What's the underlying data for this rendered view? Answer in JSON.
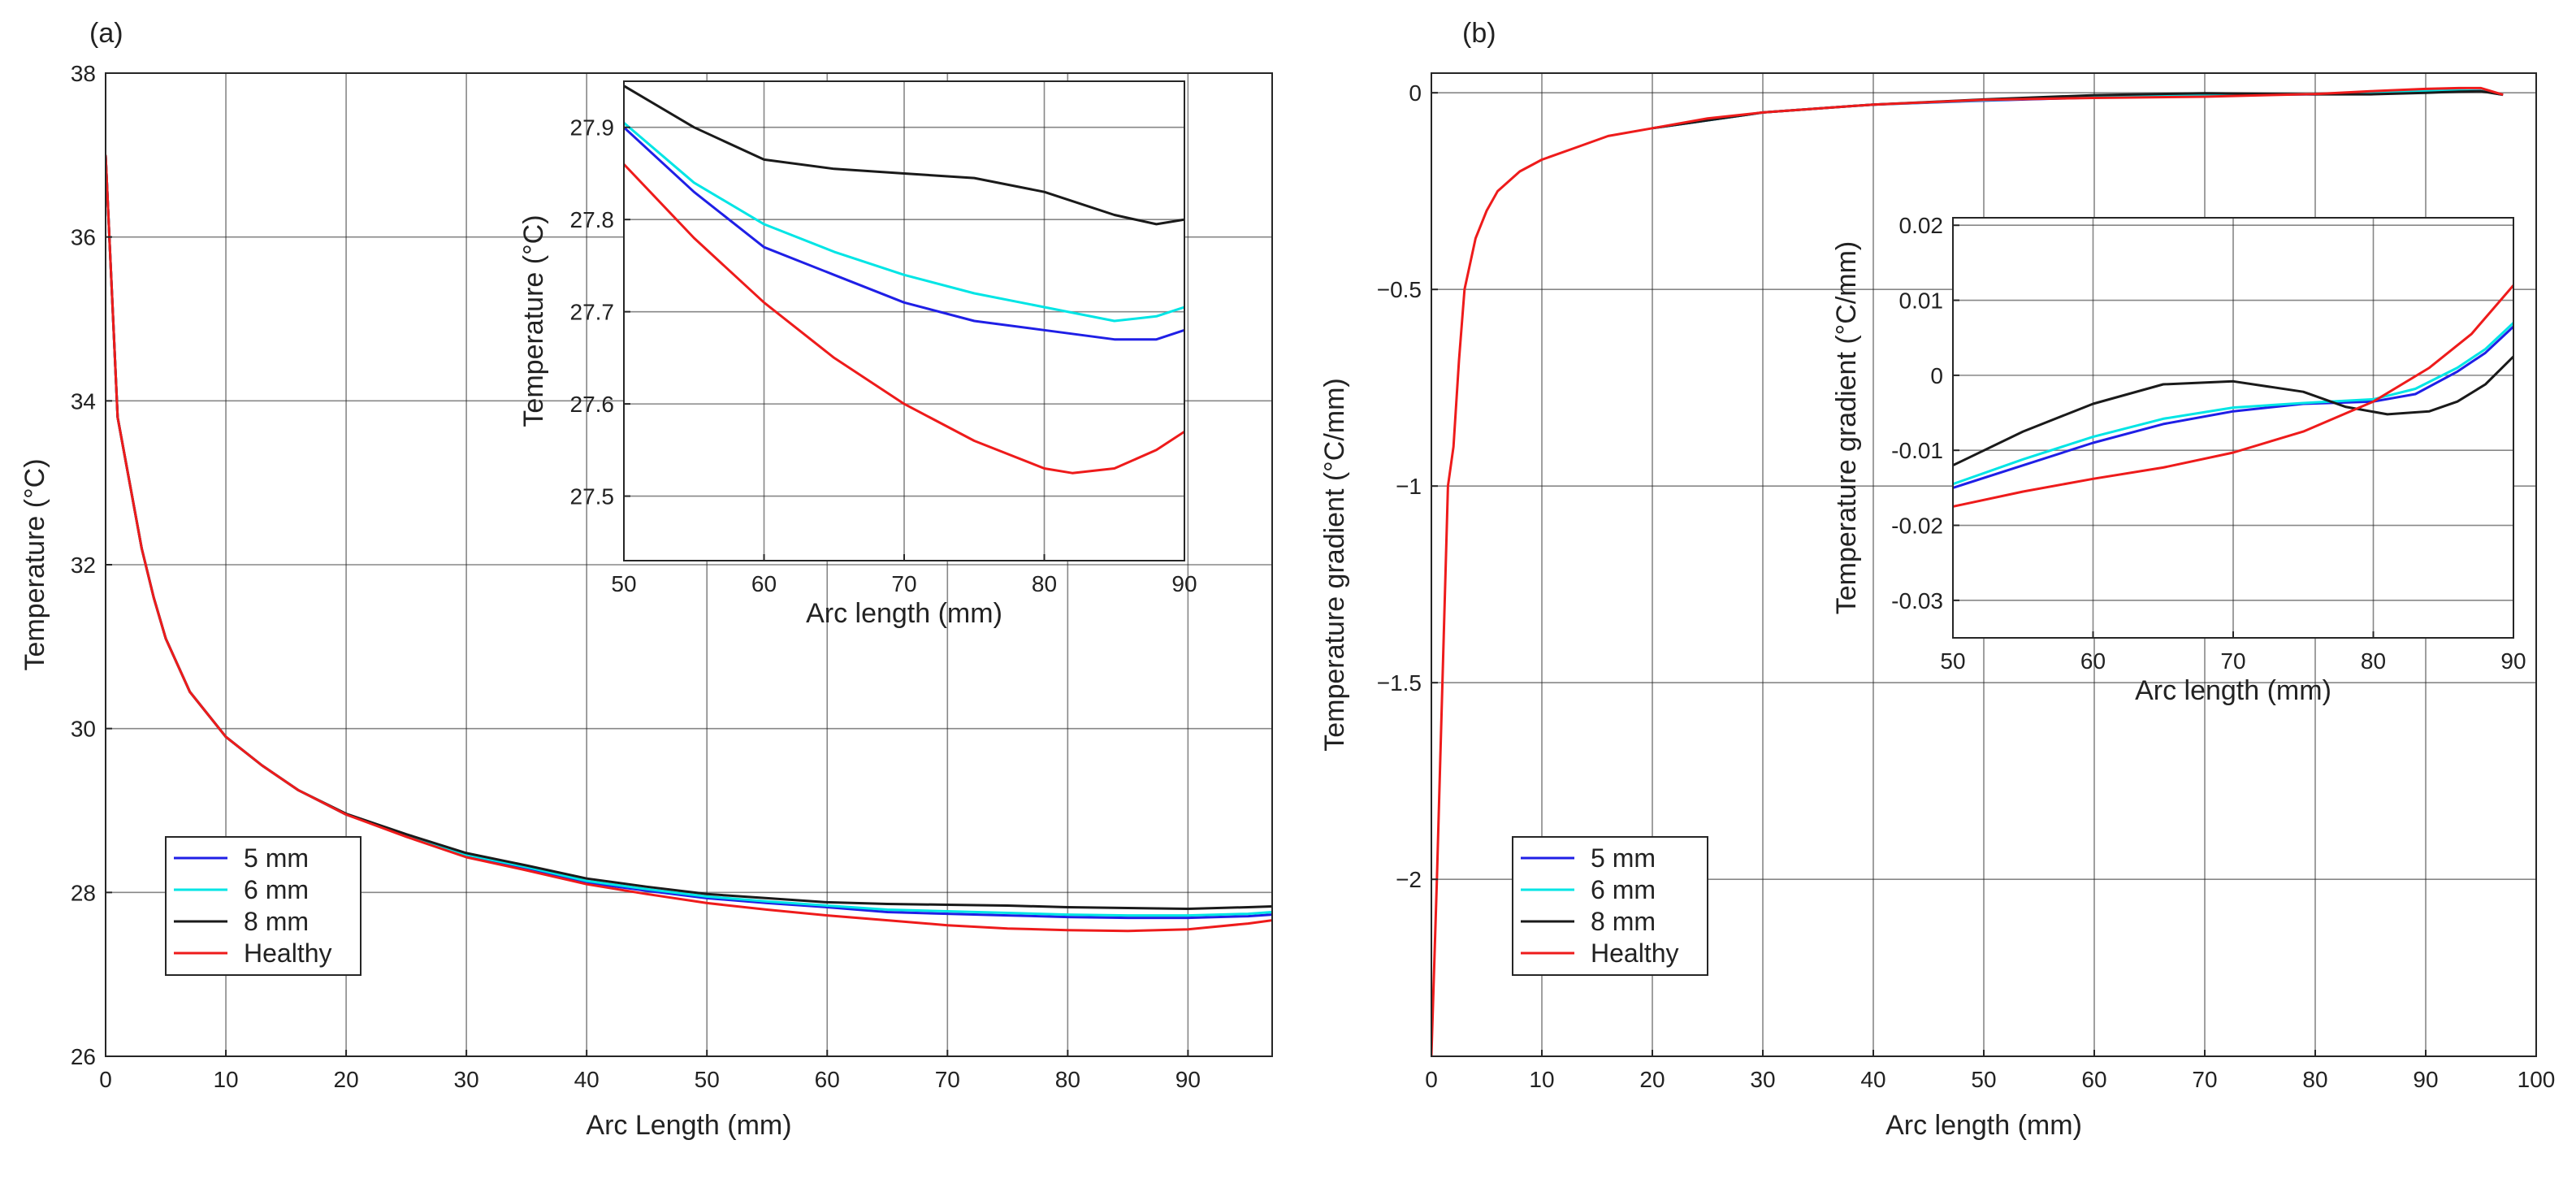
{
  "chart_data": [
    {
      "type": "line",
      "panel_label": "(a)",
      "xlabel": "Arc Length (mm)",
      "ylabel": "Temperature (°C)",
      "xlim": [
        0,
        97
      ],
      "ylim": [
        26,
        38
      ],
      "xticks": [
        0,
        10,
        20,
        30,
        40,
        50,
        60,
        70,
        80,
        90
      ],
      "yticks": [
        26,
        28,
        30,
        32,
        34,
        36,
        38
      ],
      "xtick_labels": [
        "0",
        "10",
        "20",
        "30",
        "40",
        "50",
        "60",
        "70",
        "80",
        "90"
      ],
      "ytick_labels": [
        "26",
        "28",
        "30",
        "32",
        "34",
        "36",
        "38"
      ],
      "grid": true,
      "legend_position": "bottom-left",
      "series": [
        {
          "name": "5 mm",
          "color": "#1f1fe6",
          "x": [
            0,
            1,
            2,
            3,
            4,
            5,
            7,
            10,
            13,
            16,
            20,
            25,
            30,
            35,
            40,
            45,
            50,
            55,
            60,
            65,
            70,
            75,
            80,
            85,
            90,
            95,
            97
          ],
          "y": [
            37,
            33.8,
            33.0,
            32.2,
            31.6,
            31.1,
            30.45,
            29.9,
            29.55,
            29.25,
            28.95,
            28.7,
            28.45,
            28.3,
            28.12,
            28.02,
            27.93,
            27.87,
            27.82,
            27.76,
            27.74,
            27.72,
            27.7,
            27.69,
            27.69,
            27.71,
            27.73
          ]
        },
        {
          "name": "6 mm",
          "color": "#00e5e5",
          "x": [
            0,
            1,
            2,
            3,
            4,
            5,
            7,
            10,
            13,
            16,
            20,
            25,
            30,
            35,
            40,
            45,
            50,
            55,
            60,
            65,
            70,
            75,
            80,
            85,
            90,
            95,
            97
          ],
          "y": [
            37,
            33.8,
            33.0,
            32.2,
            31.6,
            31.1,
            30.45,
            29.9,
            29.55,
            29.25,
            28.95,
            28.7,
            28.46,
            28.31,
            28.14,
            28.04,
            27.95,
            27.89,
            27.84,
            27.79,
            27.77,
            27.75,
            27.73,
            27.72,
            27.72,
            27.74,
            27.76
          ]
        },
        {
          "name": "8 mm",
          "color": "#1a1a1a",
          "x": [
            0,
            1,
            2,
            3,
            4,
            5,
            7,
            10,
            13,
            16,
            20,
            25,
            30,
            35,
            40,
            45,
            50,
            55,
            60,
            65,
            70,
            75,
            80,
            85,
            90,
            95,
            97
          ],
          "y": [
            37,
            33.8,
            33.0,
            32.2,
            31.6,
            31.1,
            30.45,
            29.9,
            29.55,
            29.25,
            28.96,
            28.71,
            28.48,
            28.33,
            28.17,
            28.07,
            27.98,
            27.93,
            27.88,
            27.86,
            27.85,
            27.84,
            27.82,
            27.81,
            27.8,
            27.82,
            27.83
          ]
        },
        {
          "name": "Healthy",
          "color": "#ee1b1b",
          "x": [
            0,
            1,
            2,
            3,
            4,
            5,
            7,
            10,
            13,
            16,
            20,
            25,
            30,
            35,
            40,
            45,
            50,
            55,
            60,
            65,
            70,
            75,
            80,
            85,
            90,
            95,
            97
          ],
          "y": [
            37,
            33.8,
            33.0,
            32.2,
            31.6,
            31.1,
            30.45,
            29.9,
            29.55,
            29.25,
            28.95,
            28.68,
            28.43,
            28.27,
            28.1,
            27.98,
            27.87,
            27.79,
            27.72,
            27.66,
            27.6,
            27.56,
            27.54,
            27.53,
            27.55,
            27.62,
            27.66
          ]
        }
      ],
      "inset": {
        "xlabel": "Arc length (mm)",
        "ylabel": "Temperature (°C)",
        "xlim": [
          50,
          90
        ],
        "ylim": [
          27.43,
          27.95
        ],
        "xticks": [
          50,
          60,
          70,
          80,
          90
        ],
        "yticks": [
          27.5,
          27.6,
          27.7,
          27.8,
          27.9
        ],
        "xtick_labels": [
          "50",
          "60",
          "70",
          "80",
          "90"
        ],
        "ytick_labels": [
          "27.5",
          "27.6",
          "27.7",
          "27.8",
          "27.9"
        ],
        "series": [
          {
            "name": "5 mm",
            "color": "#1f1fe6",
            "x": [
              50,
              55,
              60,
              65,
              70,
              75,
              80,
              85,
              88,
              90
            ],
            "y": [
              27.9,
              27.83,
              27.77,
              27.74,
              27.71,
              27.69,
              27.68,
              27.67,
              27.67,
              27.68
            ]
          },
          {
            "name": "6 mm",
            "color": "#00e5e5",
            "x": [
              50,
              55,
              60,
              65,
              70,
              75,
              80,
              85,
              88,
              90
            ],
            "y": [
              27.905,
              27.84,
              27.795,
              27.765,
              27.74,
              27.72,
              27.705,
              27.69,
              27.695,
              27.705
            ]
          },
          {
            "name": "8 mm",
            "color": "#1a1a1a",
            "x": [
              50,
              55,
              60,
              65,
              70,
              75,
              80,
              85,
              88,
              90
            ],
            "y": [
              27.945,
              27.9,
              27.865,
              27.855,
              27.85,
              27.845,
              27.83,
              27.805,
              27.795,
              27.8
            ]
          },
          {
            "name": "Healthy",
            "color": "#ee1b1b",
            "x": [
              50,
              55,
              60,
              65,
              70,
              75,
              80,
              82,
              85,
              88,
              90
            ],
            "y": [
              27.86,
              27.78,
              27.71,
              27.65,
              27.6,
              27.56,
              27.53,
              27.525,
              27.53,
              27.55,
              27.57
            ]
          }
        ]
      }
    },
    {
      "type": "line",
      "panel_label": "(b)",
      "xlabel": "Arc length (mm)",
      "ylabel": "Temperature gradient (°C/mm)",
      "xlim": [
        0,
        100
      ],
      "ylim": [
        -2.45,
        0.05
      ],
      "xticks": [
        0,
        10,
        20,
        30,
        40,
        50,
        60,
        70,
        80,
        90,
        100
      ],
      "yticks": [
        -2,
        -1.5,
        -1,
        -0.5,
        0
      ],
      "xtick_labels": [
        "0",
        "10",
        "20",
        "30",
        "40",
        "50",
        "60",
        "70",
        "80",
        "90",
        "100"
      ],
      "ytick_labels": [
        "−2",
        "−1.5",
        "−1",
        "−0.5",
        "0"
      ],
      "grid": true,
      "legend_position": "bottom-left",
      "series": [
        {
          "name": "5 mm",
          "color": "#1f1fe6",
          "x": [
            20,
            30,
            40,
            50,
            60,
            70,
            80,
            85,
            90,
            93,
            95,
            97
          ],
          "y": [
            -0.09,
            -0.05,
            -0.03,
            -0.02,
            -0.012,
            -0.006,
            -0.004,
            0.0,
            0.004,
            0.006,
            0.005,
            -0.005
          ]
        },
        {
          "name": "6 mm",
          "color": "#00e5e5",
          "x": [
            20,
            30,
            40,
            50,
            60,
            70,
            80,
            85,
            90,
            93,
            95,
            97
          ],
          "y": [
            -0.09,
            -0.05,
            -0.03,
            -0.019,
            -0.011,
            -0.005,
            -0.004,
            0.0,
            0.004,
            0.006,
            0.005,
            -0.005
          ]
        },
        {
          "name": "8 mm",
          "color": "#1a1a1a",
          "x": [
            20,
            30,
            40,
            50,
            60,
            70,
            80,
            85,
            90,
            93,
            95,
            97
          ],
          "y": [
            -0.09,
            -0.05,
            -0.03,
            -0.017,
            -0.006,
            -0.001,
            -0.004,
            -0.004,
            0.0,
            0.003,
            0.004,
            -0.005
          ]
        },
        {
          "name": "Healthy",
          "color": "#ee1b1b",
          "x": [
            0,
            0.5,
            1,
            1.5,
            2,
            2.5,
            3,
            4,
            5,
            6,
            8,
            10,
            13,
            16,
            20,
            25,
            30,
            40,
            50,
            60,
            70,
            80,
            85,
            90,
            93,
            95,
            97
          ],
          "y": [
            -2.45,
            -2.0,
            -1.5,
            -1.0,
            -0.9,
            -0.68,
            -0.5,
            -0.37,
            -0.3,
            -0.25,
            -0.2,
            -0.17,
            -0.14,
            -0.11,
            -0.09,
            -0.065,
            -0.05,
            -0.03,
            -0.018,
            -0.013,
            -0.01,
            -0.003,
            0.004,
            0.01,
            0.012,
            0.012,
            -0.005
          ]
        }
      ],
      "inset": {
        "xlabel": "Arc length (mm)",
        "ylabel": "Temperature gradient (°C/mm)",
        "xlim": [
          50,
          90
        ],
        "ylim": [
          -0.035,
          0.021
        ],
        "xticks": [
          50,
          60,
          70,
          80,
          90
        ],
        "yticks": [
          -0.03,
          -0.02,
          -0.01,
          0,
          0.01,
          0.02
        ],
        "xtick_labels": [
          "50",
          "60",
          "70",
          "80",
          "90"
        ],
        "ytick_labels": [
          "-0.03",
          "-0.02",
          "-0.01",
          "0",
          "0.01",
          "0.02"
        ],
        "series": [
          {
            "name": "5 mm",
            "color": "#1f1fe6",
            "x": [
              50,
              55,
              60,
              65,
              70,
              75,
              80,
              83,
              86,
              88,
              90
            ],
            "y": [
              -0.015,
              -0.012,
              -0.009,
              -0.0065,
              -0.0048,
              -0.0038,
              -0.0035,
              -0.0025,
              0.0005,
              0.003,
              0.0065
            ]
          },
          {
            "name": "6 mm",
            "color": "#00e5e5",
            "x": [
              50,
              55,
              60,
              65,
              70,
              75,
              80,
              83,
              86,
              88,
              90
            ],
            "y": [
              -0.0145,
              -0.0112,
              -0.0082,
              -0.0058,
              -0.0043,
              -0.0037,
              -0.0032,
              -0.0018,
              0.001,
              0.0035,
              0.007
            ]
          },
          {
            "name": "8 mm",
            "color": "#1a1a1a",
            "x": [
              50,
              55,
              60,
              65,
              70,
              75,
              78,
              81,
              84,
              86,
              88,
              90
            ],
            "y": [
              -0.012,
              -0.0075,
              -0.0038,
              -0.0012,
              -0.0008,
              -0.0022,
              -0.0042,
              -0.0052,
              -0.0048,
              -0.0035,
              -0.0012,
              0.0025
            ]
          },
          {
            "name": "Healthy",
            "color": "#ee1b1b",
            "x": [
              50,
              55,
              60,
              65,
              70,
              75,
              80,
              84,
              87,
              90
            ],
            "y": [
              -0.0175,
              -0.0155,
              -0.0138,
              -0.0123,
              -0.0103,
              -0.0075,
              -0.0035,
              0.001,
              0.0055,
              0.012
            ]
          }
        ]
      }
    }
  ]
}
